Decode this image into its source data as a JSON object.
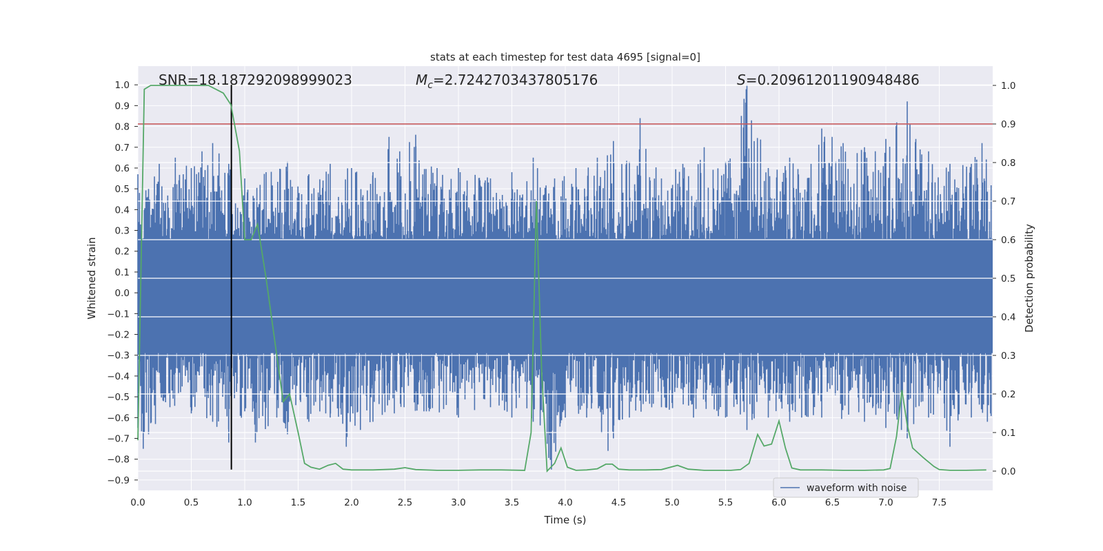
{
  "chart_data": {
    "type": "line",
    "title": "stats at each timestep for test data 4695 [signal=0]",
    "xlabel": "Time (s)",
    "ylabel": "Whitened strain",
    "y2label": "Detection probability",
    "xlim": [
      0.0,
      8.0
    ],
    "ylim": [
      -0.95,
      1.09
    ],
    "y2lim": [
      -0.05,
      1.05
    ],
    "x_ticks": [
      0.0,
      0.5,
      1.0,
      1.5,
      2.0,
      2.5,
      3.0,
      3.5,
      4.0,
      4.5,
      5.0,
      5.5,
      6.0,
      6.5,
      7.0,
      7.5
    ],
    "x_tick_labels": [
      "0.0",
      "0.5",
      "1.0",
      "1.5",
      "2.0",
      "2.5",
      "3.0",
      "3.5",
      "4.0",
      "4.5",
      "5.0",
      "5.5",
      "6.0",
      "6.5",
      "7.0",
      "7.5"
    ],
    "y_ticks": [
      1.0,
      0.9,
      0.8,
      0.7,
      0.6,
      0.5,
      0.4,
      0.3,
      0.2,
      0.1,
      0.0,
      -0.1,
      -0.2,
      -0.3,
      -0.4,
      -0.5,
      -0.6,
      -0.7,
      -0.8,
      -0.9
    ],
    "y_tick_labels": [
      "1.0",
      "0.9",
      "0.8",
      "0.7",
      "0.6",
      "0.5",
      "0.4",
      "0.3",
      "0.2",
      "0.1",
      "0.0",
      "−0.1",
      "−0.2",
      "−0.3",
      "−0.4",
      "−0.5",
      "−0.6",
      "−0.7",
      "−0.8",
      "−0.9"
    ],
    "y2_ticks": [
      1.0,
      0.9,
      0.8,
      0.7,
      0.6,
      0.5,
      0.4,
      0.3,
      0.2,
      0.1,
      0.0
    ],
    "y2_tick_labels": [
      "1.0",
      "0.9",
      "0.8",
      "0.7",
      "0.6",
      "0.5",
      "0.4",
      "0.3",
      "0.2",
      "0.1",
      "0.0"
    ],
    "grid": true,
    "background": "#eaeaf2",
    "legend": {
      "placement": "lower-right",
      "entries": [
        {
          "label": "waveform with noise",
          "color": "#4c72b0"
        }
      ]
    },
    "annotations": {
      "snr": "SNR=18.187292098999023",
      "mc_symbol": "M",
      "mc_sub": "c",
      "mc_value": "=2.7242703437805176",
      "s_symbol": "S",
      "s_value": "=0.20961201190948486"
    },
    "series": [
      {
        "name": "waveform with noise",
        "axis": "left",
        "color": "#4c72b0",
        "description_of_envelope": "dense noise, typical peaks",
        "upper_envelope": [
          [
            0.0,
            0.57
          ],
          [
            0.1,
            0.5
          ],
          [
            0.2,
            0.62
          ],
          [
            0.35,
            0.65
          ],
          [
            0.5,
            0.6
          ],
          [
            0.6,
            0.68
          ],
          [
            0.7,
            0.72
          ],
          [
            0.85,
            0.62
          ],
          [
            1.0,
            0.55
          ],
          [
            1.2,
            0.58
          ],
          [
            1.4,
            0.63
          ],
          [
            1.6,
            0.57
          ],
          [
            1.8,
            0.62
          ],
          [
            2.0,
            0.6
          ],
          [
            2.2,
            0.58
          ],
          [
            2.35,
            0.75
          ],
          [
            2.45,
            0.68
          ],
          [
            2.6,
            0.76
          ],
          [
            2.8,
            0.6
          ],
          [
            3.0,
            0.6
          ],
          [
            3.3,
            0.55
          ],
          [
            3.5,
            0.58
          ],
          [
            3.7,
            0.65
          ],
          [
            3.9,
            0.55
          ],
          [
            4.1,
            0.6
          ],
          [
            4.3,
            0.65
          ],
          [
            4.45,
            0.73
          ],
          [
            4.6,
            0.63
          ],
          [
            4.7,
            0.84
          ],
          [
            4.9,
            0.55
          ],
          [
            5.1,
            0.62
          ],
          [
            5.3,
            0.7
          ],
          [
            5.5,
            0.63
          ],
          [
            5.7,
            1.0
          ],
          [
            5.9,
            0.6
          ],
          [
            6.1,
            0.65
          ],
          [
            6.3,
            0.62
          ],
          [
            6.4,
            0.79
          ],
          [
            6.6,
            0.72
          ],
          [
            6.8,
            0.7
          ],
          [
            7.0,
            0.74
          ],
          [
            7.2,
            0.92
          ],
          [
            7.4,
            0.68
          ],
          [
            7.6,
            0.62
          ],
          [
            7.8,
            0.62
          ],
          [
            7.9,
            0.72
          ]
        ],
        "lower_envelope": [
          [
            0.0,
            -0.65
          ],
          [
            0.05,
            -0.75
          ],
          [
            0.1,
            -0.68
          ],
          [
            0.3,
            -0.55
          ],
          [
            0.5,
            -0.58
          ],
          [
            0.7,
            -0.62
          ],
          [
            0.85,
            -0.72
          ],
          [
            1.0,
            -0.57
          ],
          [
            1.1,
            -0.72
          ],
          [
            1.3,
            -0.6
          ],
          [
            1.4,
            -0.68
          ],
          [
            1.6,
            -0.62
          ],
          [
            1.8,
            -0.6
          ],
          [
            1.95,
            -0.74
          ],
          [
            2.2,
            -0.62
          ],
          [
            2.4,
            -0.58
          ],
          [
            2.7,
            -0.57
          ],
          [
            3.0,
            -0.6
          ],
          [
            3.3,
            -0.55
          ],
          [
            3.5,
            -0.6
          ],
          [
            3.7,
            -0.62
          ],
          [
            3.87,
            -0.85
          ],
          [
            4.0,
            -0.6
          ],
          [
            4.2,
            -0.6
          ],
          [
            4.4,
            -0.76
          ],
          [
            4.45,
            -0.7
          ],
          [
            4.6,
            -0.6
          ],
          [
            4.9,
            -0.55
          ],
          [
            5.2,
            -0.6
          ],
          [
            5.5,
            -0.6
          ],
          [
            5.7,
            -0.66
          ],
          [
            5.9,
            -0.6
          ],
          [
            6.1,
            -0.62
          ],
          [
            6.4,
            -0.6
          ],
          [
            6.8,
            -0.62
          ],
          [
            7.0,
            -0.65
          ],
          [
            7.2,
            -0.7
          ],
          [
            7.4,
            -0.6
          ],
          [
            7.6,
            -0.74
          ],
          [
            7.8,
            -0.6
          ],
          [
            7.95,
            -0.62
          ]
        ]
      },
      {
        "name": "",
        "axis": "right",
        "color": "#55a868",
        "points": [
          [
            0.0,
            0.08
          ],
          [
            0.06,
            0.99
          ],
          [
            0.12,
            1.0
          ],
          [
            0.3,
            1.0
          ],
          [
            0.5,
            1.0
          ],
          [
            0.66,
            1.0
          ],
          [
            0.73,
            0.99
          ],
          [
            0.8,
            0.98
          ],
          [
            0.87,
            0.95
          ],
          [
            0.95,
            0.83
          ],
          [
            1.0,
            0.6
          ],
          [
            1.06,
            0.6
          ],
          [
            1.12,
            0.64
          ],
          [
            1.2,
            0.5
          ],
          [
            1.3,
            0.3
          ],
          [
            1.36,
            0.18
          ],
          [
            1.42,
            0.2
          ],
          [
            1.5,
            0.1
          ],
          [
            1.56,
            0.02
          ],
          [
            1.62,
            0.01
          ],
          [
            1.7,
            0.005
          ],
          [
            1.78,
            0.015
          ],
          [
            1.85,
            0.02
          ],
          [
            1.92,
            0.005
          ],
          [
            2.0,
            0.003
          ],
          [
            2.2,
            0.003
          ],
          [
            2.4,
            0.005
          ],
          [
            2.5,
            0.009
          ],
          [
            2.6,
            0.004
          ],
          [
            2.8,
            0.002
          ],
          [
            3.0,
            0.002
          ],
          [
            3.2,
            0.003
          ],
          [
            3.4,
            0.003
          ],
          [
            3.62,
            0.002
          ],
          [
            3.68,
            0.1
          ],
          [
            3.73,
            0.7
          ],
          [
            3.78,
            0.25
          ],
          [
            3.83,
            0.0
          ],
          [
            3.9,
            0.02
          ],
          [
            3.96,
            0.06
          ],
          [
            4.02,
            0.01
          ],
          [
            4.1,
            0.002
          ],
          [
            4.2,
            0.003
          ],
          [
            4.3,
            0.006
          ],
          [
            4.38,
            0.018
          ],
          [
            4.44,
            0.018
          ],
          [
            4.5,
            0.005
          ],
          [
            4.6,
            0.003
          ],
          [
            4.75,
            0.003
          ],
          [
            4.9,
            0.004
          ],
          [
            5.05,
            0.015
          ],
          [
            5.15,
            0.005
          ],
          [
            5.3,
            0.002
          ],
          [
            5.55,
            0.002
          ],
          [
            5.64,
            0.004
          ],
          [
            5.72,
            0.02
          ],
          [
            5.8,
            0.095
          ],
          [
            5.86,
            0.065
          ],
          [
            5.93,
            0.07
          ],
          [
            6.0,
            0.13
          ],
          [
            6.06,
            0.06
          ],
          [
            6.12,
            0.008
          ],
          [
            6.2,
            0.003
          ],
          [
            6.4,
            0.003
          ],
          [
            6.6,
            0.002
          ],
          [
            6.8,
            0.002
          ],
          [
            6.98,
            0.003
          ],
          [
            7.04,
            0.007
          ],
          [
            7.1,
            0.09
          ],
          [
            7.15,
            0.21
          ],
          [
            7.2,
            0.12
          ],
          [
            7.25,
            0.06
          ],
          [
            7.35,
            0.035
          ],
          [
            7.45,
            0.012
          ],
          [
            7.5,
            0.004
          ],
          [
            7.6,
            0.002
          ],
          [
            7.75,
            0.002
          ],
          [
            7.94,
            0.003
          ]
        ]
      }
    ],
    "reference_lines": [
      {
        "kind": "horizontal",
        "axis": "right",
        "value": 0.9,
        "color": "#c44e52"
      },
      {
        "kind": "vertical",
        "x": 0.875,
        "y_range": [
          -0.85,
          1.0
        ],
        "color": "#000000"
      }
    ]
  }
}
